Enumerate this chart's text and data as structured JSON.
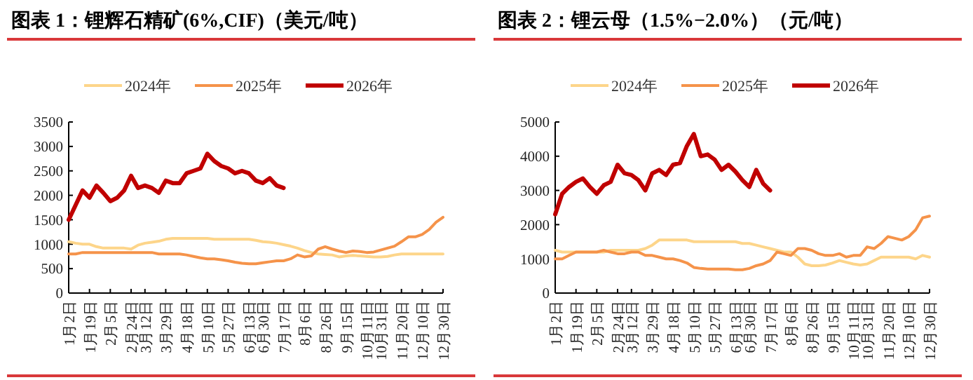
{
  "chart_data": [
    {
      "type": "line",
      "title": "图表 1：锂辉石精矿(6%,CIF)（美元/吨）",
      "categories": [
        "1月2日",
        null,
        null,
        "1月19日",
        null,
        null,
        "2月5日",
        null,
        null,
        "2月24日",
        null,
        "3月12日",
        null,
        null,
        "3月29日",
        null,
        null,
        "4月18日",
        null,
        null,
        "5月10日",
        null,
        null,
        "5月27日",
        null,
        null,
        "6月13日",
        null,
        "6月30日",
        null,
        null,
        "7月17日",
        null,
        null,
        "8月6日",
        null,
        null,
        "8月26日",
        null,
        null,
        "9月15日",
        null,
        null,
        "10月11日",
        null,
        "10月31日",
        null,
        null,
        "11月20日",
        null,
        null,
        "12月10日",
        null,
        null,
        "12月30日"
      ],
      "series": [
        {
          "name": "2024年",
          "color": "#fdd58a",
          "values": [
            1050,
            1020,
            1000,
            1000,
            950,
            920,
            920,
            920,
            920,
            900,
            980,
            1020,
            1040,
            1060,
            1100,
            1120,
            1120,
            1120,
            1120,
            1120,
            1120,
            1100,
            1100,
            1100,
            1100,
            1100,
            1100,
            1080,
            1050,
            1040,
            1020,
            990,
            960,
            920,
            870,
            830,
            800,
            790,
            780,
            740,
            760,
            770,
            760,
            750,
            740,
            740,
            750,
            780,
            800,
            800,
            800,
            800,
            800,
            800,
            800
          ]
        },
        {
          "name": "2025年",
          "color": "#f5934a",
          "values": [
            800,
            800,
            830,
            830,
            830,
            830,
            830,
            830,
            830,
            830,
            830,
            830,
            830,
            800,
            800,
            800,
            800,
            780,
            750,
            720,
            700,
            700,
            680,
            660,
            630,
            610,
            600,
            600,
            620,
            640,
            660,
            660,
            700,
            780,
            740,
            760,
            900,
            950,
            900,
            860,
            830,
            860,
            850,
            830,
            840,
            880,
            920,
            960,
            1050,
            1150,
            1150,
            1200,
            1300,
            1450,
            1550
          ]
        },
        {
          "name": "2026年",
          "color": "#c00000",
          "values": [
            1500,
            1800,
            2100,
            1950,
            2200,
            2050,
            1880,
            1950,
            2100,
            2400,
            2150,
            2200,
            2150,
            2050,
            2300,
            2250,
            2250,
            2450,
            2500,
            2550,
            2850,
            2700,
            2600,
            2550,
            2450,
            2500,
            2450,
            2300,
            2250,
            2350,
            2200,
            2150,
            null,
            null,
            null,
            null,
            null,
            null,
            null,
            null,
            null,
            null,
            null,
            null,
            null,
            null,
            null,
            null,
            null,
            null,
            null,
            null,
            null,
            null,
            null
          ]
        }
      ],
      "ylim": [
        0,
        3500
      ],
      "yticks": [
        0,
        500,
        1000,
        1500,
        2000,
        2500,
        3000,
        3500
      ],
      "legend": "top"
    },
    {
      "type": "line",
      "title": "图表 2：锂云母（1.5%−2.0%）（元/吨）",
      "categories": [
        "1月2日",
        null,
        null,
        "1月19日",
        null,
        null,
        "2月5日",
        null,
        null,
        "2月24日",
        null,
        "3月12日",
        null,
        null,
        "3月29日",
        null,
        null,
        "4月18日",
        null,
        null,
        "5月10日",
        null,
        null,
        "5月27日",
        null,
        null,
        "6月13日",
        null,
        "6月30日",
        null,
        null,
        "7月17日",
        null,
        null,
        "8月6日",
        null,
        null,
        "8月26日",
        null,
        null,
        "9月15日",
        null,
        null,
        "10月11日",
        null,
        "10月31日",
        null,
        null,
        "11月20日",
        null,
        null,
        "12月10日",
        null,
        null,
        "12月30日"
      ],
      "series": [
        {
          "name": "2024年",
          "color": "#fdd58a",
          "values": [
            1250,
            1200,
            1200,
            1200,
            1200,
            1200,
            1200,
            1200,
            1250,
            1250,
            1250,
            1250,
            1250,
            1300,
            1400,
            1550,
            1550,
            1550,
            1550,
            1550,
            1500,
            1500,
            1500,
            1500,
            1500,
            1500,
            1500,
            1450,
            1450,
            1400,
            1350,
            1300,
            1250,
            1200,
            1200,
            1050,
            850,
            800,
            800,
            820,
            880,
            950,
            900,
            850,
            820,
            850,
            950,
            1050,
            1050,
            1050,
            1050,
            1050,
            1000,
            1100,
            1050
          ]
        },
        {
          "name": "2025年",
          "color": "#f5934a",
          "values": [
            1000,
            1000,
            1100,
            1200,
            1200,
            1200,
            1200,
            1250,
            1200,
            1150,
            1150,
            1200,
            1200,
            1100,
            1100,
            1050,
            1000,
            1000,
            950,
            880,
            750,
            720,
            700,
            700,
            700,
            700,
            680,
            680,
            720,
            800,
            850,
            950,
            1200,
            1150,
            1100,
            1300,
            1300,
            1250,
            1150,
            1100,
            1100,
            1150,
            1050,
            1100,
            1100,
            1350,
            1300,
            1450,
            1650,
            1600,
            1550,
            1650,
            1850,
            2200,
            2250
          ]
        },
        {
          "name": "2026年",
          "color": "#c00000",
          "values": [
            2300,
            2900,
            3100,
            3250,
            3350,
            3100,
            2900,
            3150,
            3250,
            3750,
            3500,
            3450,
            3300,
            3000,
            3500,
            3600,
            3450,
            3750,
            3800,
            4300,
            4650,
            4000,
            4050,
            3900,
            3600,
            3750,
            3550,
            3300,
            3100,
            3600,
            3200,
            3000,
            null,
            null,
            null,
            null,
            null,
            null,
            null,
            null,
            null,
            null,
            null,
            null,
            null,
            null,
            null,
            null,
            null,
            null,
            null,
            null,
            null,
            null,
            null
          ]
        }
      ],
      "ylim": [
        0,
        5000
      ],
      "yticks": [
        0,
        1000,
        2000,
        3000,
        4000,
        5000
      ],
      "legend": "top"
    }
  ]
}
